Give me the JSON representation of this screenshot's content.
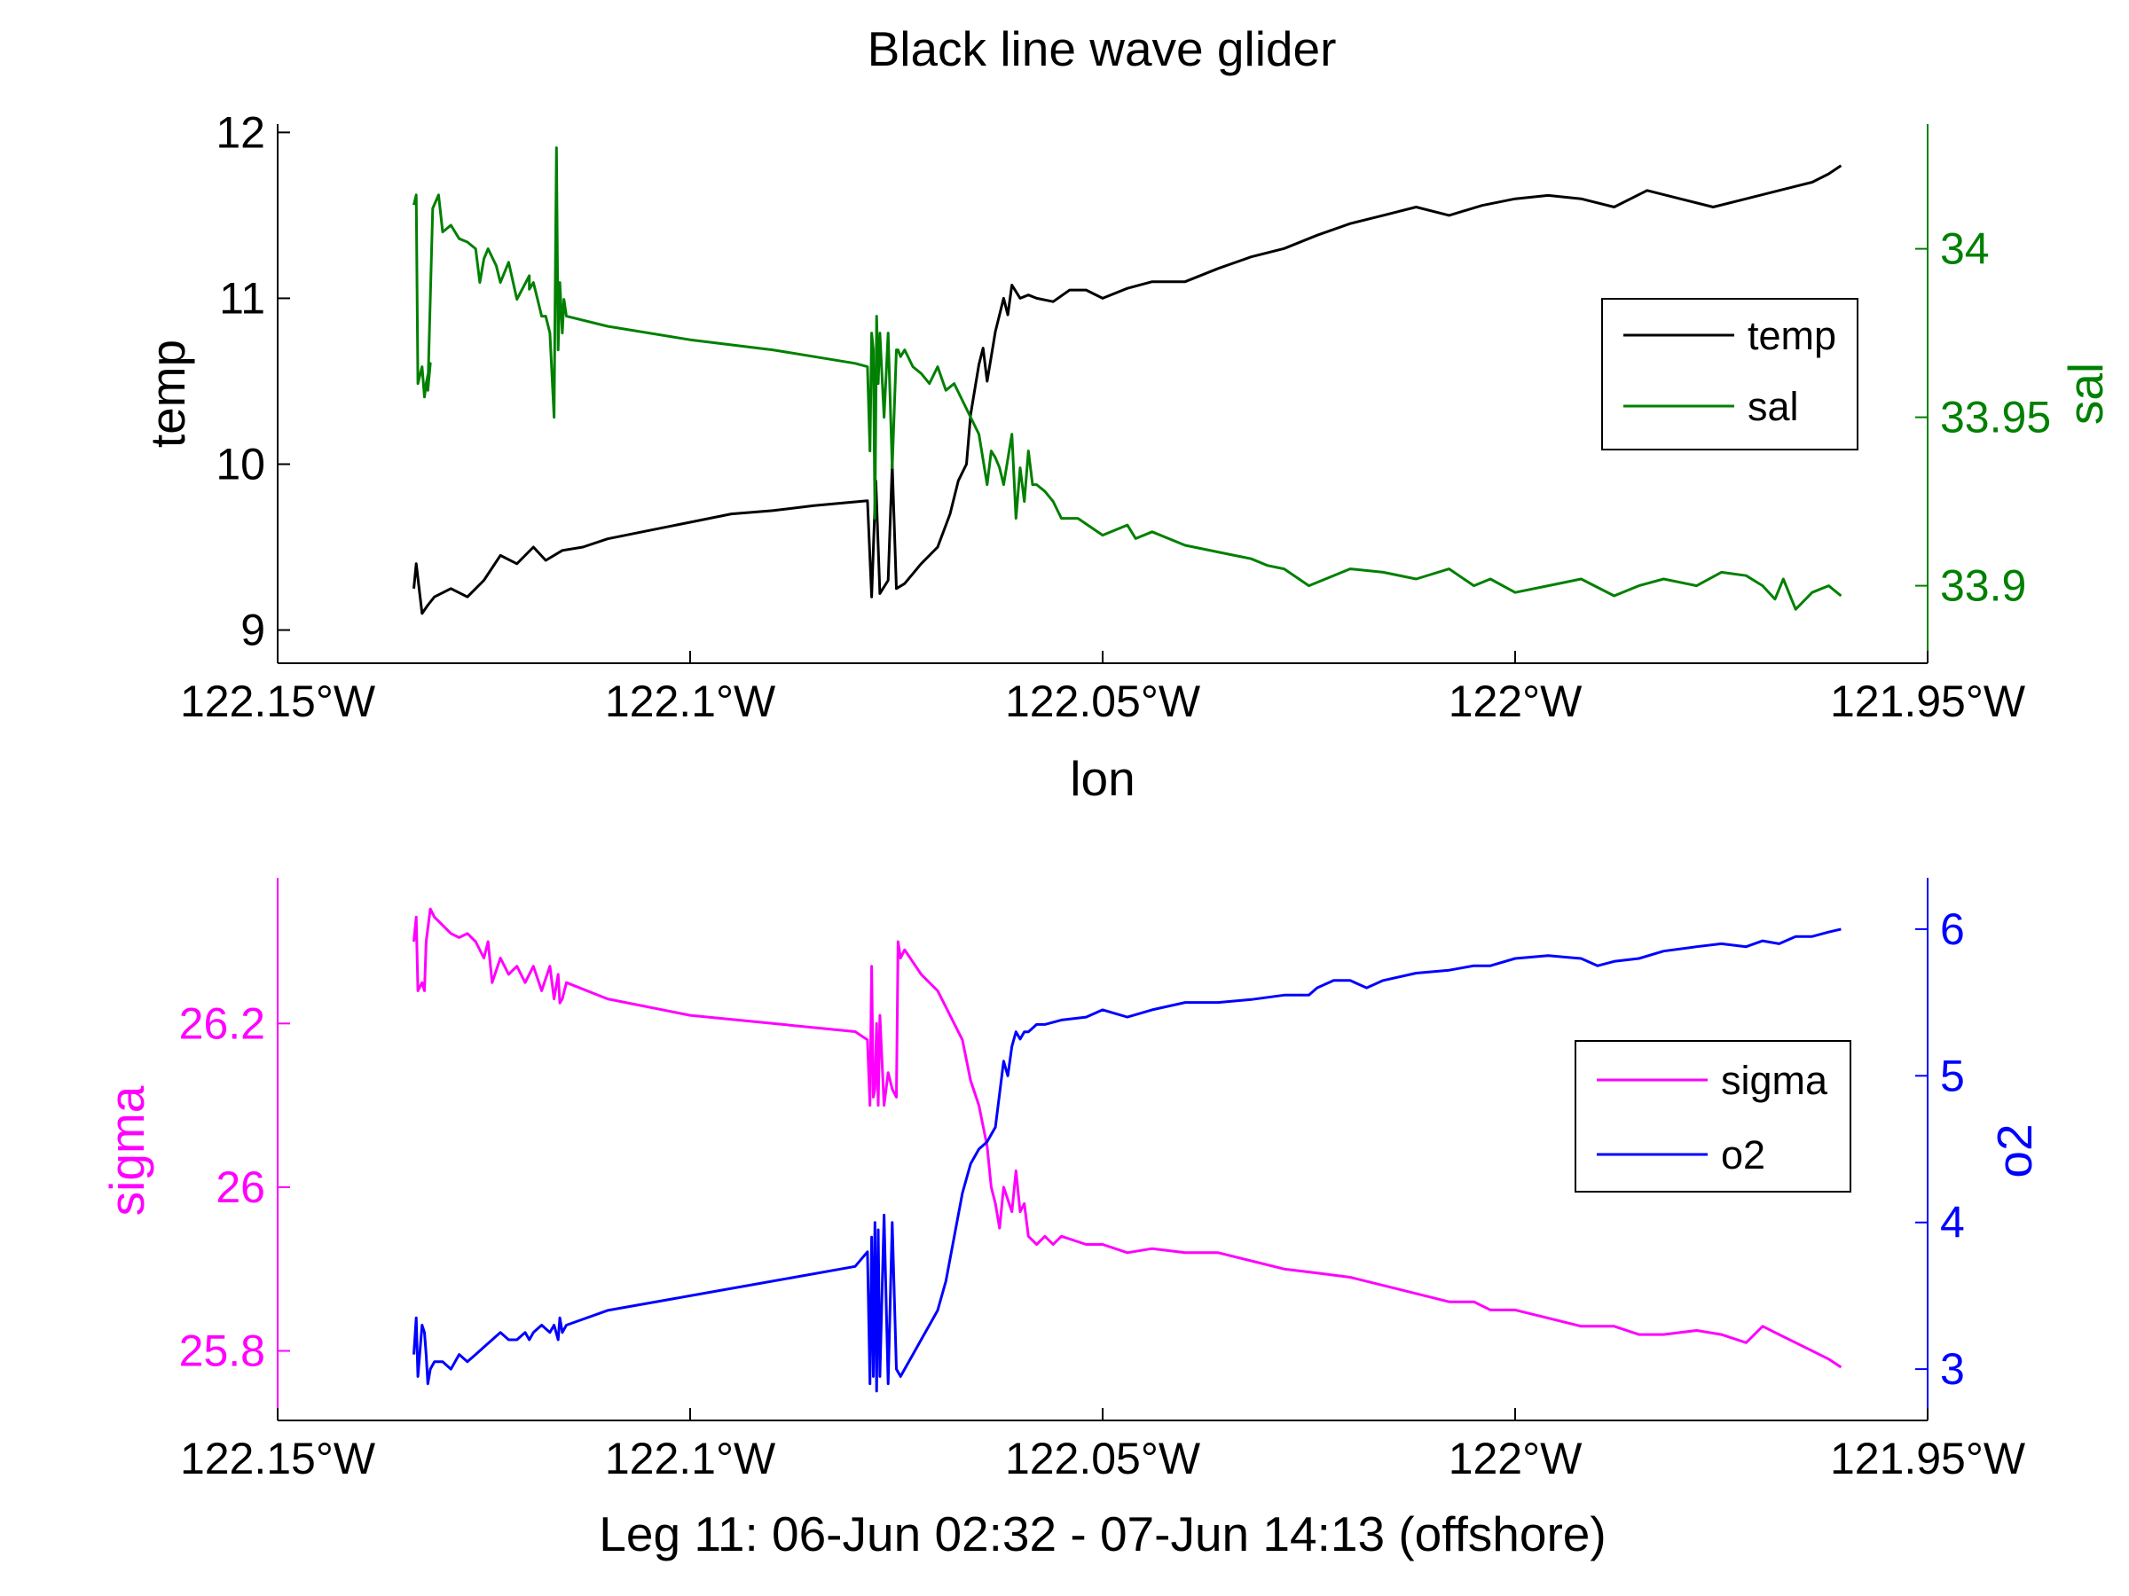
{
  "figure": {
    "title": "Black line wave glider",
    "subtitle": "Leg 11: 06-Jun 02:32 - 07-Jun 14:13 (offshore)"
  },
  "chart_data": [
    {
      "type": "line",
      "title": "Black line wave glider",
      "xlabel": "lon",
      "ylabel": "temp",
      "y2label": "sal",
      "xlim": [
        -122.15,
        -121.95
      ],
      "ylim": [
        8.8,
        12.05
      ],
      "y2lim": [
        33.877,
        34.037
      ],
      "x_ticks": [
        -122.15,
        -122.1,
        -122.05,
        -122.0,
        -121.95
      ],
      "x_tick_labels": [
        "122.15°W",
        "122.1°W",
        "122.05°W",
        "122°W",
        "121.95°W"
      ],
      "y_ticks": [
        9,
        10,
        11,
        12
      ],
      "y_tick_labels": [
        "9",
        "10",
        "11",
        "12"
      ],
      "y2_ticks": [
        33.9,
        33.95,
        34.0
      ],
      "y2_tick_labels": [
        "33.9",
        "33.95",
        "34"
      ],
      "grid": false,
      "legend_position": "right",
      "series": [
        {
          "name": "temp",
          "axis": "left",
          "color": "#000000",
          "x": [
            -122.1335,
            -122.1332,
            -122.1325,
            -122.1318,
            -122.131,
            -122.129,
            -122.127,
            -122.125,
            -122.123,
            -122.121,
            -122.119,
            -122.1175,
            -122.1155,
            -122.113,
            -122.11,
            -122.105,
            -122.1,
            -122.095,
            -122.09,
            -122.085,
            -122.0785,
            -122.078,
            -122.0775,
            -122.077,
            -122.076,
            -122.0755,
            -122.075,
            -122.074,
            -122.072,
            -122.07,
            -122.0685,
            -122.0675,
            -122.0665,
            -122.066,
            -122.065,
            -122.0645,
            -122.064,
            -122.063,
            -122.062,
            -122.0615,
            -122.061,
            -122.06,
            -122.059,
            -122.058,
            -122.056,
            -122.054,
            -122.052,
            -122.05,
            -122.047,
            -122.044,
            -122.04,
            -122.036,
            -122.032,
            -122.028,
            -122.024,
            -122.02,
            -122.016,
            -122.012,
            -122.008,
            -122.004,
            -122.0,
            -121.996,
            -121.992,
            -121.988,
            -121.984,
            -121.98,
            -121.976,
            -121.972,
            -121.968,
            -121.964,
            -121.962,
            -121.9605
          ],
          "y": [
            9.25,
            9.4,
            9.1,
            9.15,
            9.2,
            9.25,
            9.2,
            9.3,
            9.45,
            9.4,
            9.5,
            9.42,
            9.48,
            9.5,
            9.55,
            9.6,
            9.65,
            9.7,
            9.72,
            9.75,
            9.78,
            9.2,
            9.9,
            9.22,
            9.3,
            10.0,
            9.25,
            9.28,
            9.4,
            9.5,
            9.7,
            9.9,
            10.0,
            10.3,
            10.6,
            10.7,
            10.5,
            10.8,
            11.0,
            10.9,
            11.08,
            11.0,
            11.02,
            11.0,
            10.98,
            11.05,
            11.05,
            11.0,
            11.06,
            11.1,
            11.1,
            11.18,
            11.25,
            11.3,
            11.38,
            11.45,
            11.5,
            11.55,
            11.5,
            11.56,
            11.6,
            11.62,
            11.6,
            11.55,
            11.65,
            11.6,
            11.55,
            11.6,
            11.65,
            11.7,
            11.75,
            11.8
          ]
        },
        {
          "name": "sal",
          "axis": "right",
          "color": "#008000",
          "x": [
            -122.1335,
            -122.1332,
            -122.133,
            -122.1325,
            -122.1322,
            -122.132,
            -122.1315,
            -122.1318,
            -122.1312,
            -122.1305,
            -122.13,
            -122.129,
            -122.128,
            -122.127,
            -122.126,
            -122.1255,
            -122.125,
            -122.1245,
            -122.1235,
            -122.123,
            -122.122,
            -122.121,
            -122.1195,
            -122.1195,
            -122.119,
            -122.1185,
            -122.118,
            -122.1175,
            -122.117,
            -122.1165,
            -122.1162,
            -122.116,
            -122.1158,
            -122.1155,
            -122.1153,
            -122.115,
            -122.11,
            -122.1,
            -122.09,
            -122.08,
            -122.0785,
            -122.0782,
            -122.078,
            -122.0778,
            -122.0776,
            -122.0774,
            -122.0772,
            -122.077,
            -122.0765,
            -122.076,
            -122.0755,
            -122.075,
            -122.0748,
            -122.0745,
            -122.074,
            -122.073,
            -122.072,
            -122.071,
            -122.07,
            -122.069,
            -122.068,
            -122.067,
            -122.066,
            -122.065,
            -122.064,
            -122.0635,
            -122.063,
            -122.0625,
            -122.062,
            -122.061,
            -122.0605,
            -122.06,
            -122.0595,
            -122.059,
            -122.0585,
            -122.058,
            -122.057,
            -122.056,
            -122.055,
            -122.053,
            -122.05,
            -122.047,
            -122.046,
            -122.044,
            -122.04,
            -122.036,
            -122.032,
            -122.03,
            -122.028,
            -122.025,
            -122.02,
            -122.016,
            -122.012,
            -122.008,
            -122.005,
            -122.003,
            -122.0,
            -121.996,
            -121.992,
            -121.988,
            -121.985,
            -121.982,
            -121.978,
            -121.975,
            -121.972,
            -121.97,
            -121.9685,
            -121.9675,
            -121.966,
            -121.964,
            -121.962,
            -121.9605
          ],
          "y": [
            34.013,
            34.016,
            33.96,
            33.965,
            33.956,
            33.96,
            33.966,
            33.958,
            34.012,
            34.016,
            34.005,
            34.007,
            34.003,
            34.002,
            34.0,
            33.99,
            33.997,
            34.0,
            33.995,
            33.99,
            33.996,
            33.985,
            33.992,
            33.988,
            33.99,
            33.985,
            33.98,
            33.98,
            33.975,
            33.95,
            34.03,
            33.97,
            33.99,
            33.975,
            33.985,
            33.98,
            33.977,
            33.973,
            33.97,
            33.966,
            33.965,
            33.94,
            33.975,
            33.97,
            33.92,
            33.98,
            33.96,
            33.975,
            33.95,
            33.975,
            33.935,
            33.97,
            33.97,
            33.968,
            33.97,
            33.965,
            33.963,
            33.96,
            33.965,
            33.958,
            33.96,
            33.955,
            33.95,
            33.945,
            33.93,
            33.94,
            33.938,
            33.935,
            33.93,
            33.945,
            33.92,
            33.935,
            33.925,
            33.94,
            33.93,
            33.93,
            33.928,
            33.925,
            33.92,
            33.92,
            33.915,
            33.918,
            33.914,
            33.916,
            33.912,
            33.91,
            33.908,
            33.906,
            33.905,
            33.9,
            33.905,
            33.904,
            33.902,
            33.905,
            33.9,
            33.902,
            33.898,
            33.9,
            33.902,
            33.897,
            33.9,
            33.902,
            33.9,
            33.904,
            33.903,
            33.9,
            33.896,
            33.902,
            33.893,
            33.898,
            33.9,
            33.897
          ]
        }
      ]
    },
    {
      "type": "line",
      "title": "",
      "xlabel": "Leg 11: 06-Jun 02:32 - 07-Jun 14:13 (offshore)",
      "ylabel": "sigma",
      "y2label": "o2",
      "xlim": [
        -122.15,
        -121.95
      ],
      "ylim": [
        25.715,
        26.378
      ],
      "y2lim": [
        2.65,
        6.35
      ],
      "x_ticks": [
        -122.15,
        -122.1,
        -122.05,
        -122.0,
        -121.95
      ],
      "x_tick_labels": [
        "122.15°W",
        "122.1°W",
        "122.05°W",
        "122°W",
        "121.95°W"
      ],
      "y_ticks": [
        25.8,
        26.0,
        26.2
      ],
      "y_tick_labels": [
        "25.8",
        "26",
        "26.2"
      ],
      "y2_ticks": [
        3,
        4,
        5,
        6
      ],
      "y2_tick_labels": [
        "3",
        "4",
        "5",
        "6"
      ],
      "grid": false,
      "legend_position": "right",
      "series": [
        {
          "name": "sigma",
          "axis": "left",
          "color": "#ff00ff",
          "x": [
            -122.1335,
            -122.1332,
            -122.133,
            -122.1325,
            -122.1322,
            -122.132,
            -122.1315,
            -122.131,
            -122.13,
            -122.129,
            -122.128,
            -122.127,
            -122.126,
            -122.125,
            -122.1245,
            -122.124,
            -122.123,
            -122.122,
            -122.121,
            -122.12,
            -122.119,
            -122.118,
            -122.117,
            -122.1165,
            -122.116,
            -122.1158,
            -122.1155,
            -122.115,
            -122.11,
            -122.1,
            -122.09,
            -122.08,
            -122.0785,
            -122.0782,
            -122.078,
            -122.0778,
            -122.0776,
            -122.0774,
            -122.0772,
            -122.077,
            -122.0765,
            -122.076,
            -122.0755,
            -122.075,
            -122.0748,
            -122.0745,
            -122.074,
            -122.073,
            -122.072,
            -122.071,
            -122.07,
            -122.069,
            -122.068,
            -122.067,
            -122.066,
            -122.065,
            -122.064,
            -122.0635,
            -122.063,
            -122.0625,
            -122.062,
            -122.061,
            -122.0605,
            -122.06,
            -122.0595,
            -122.059,
            -122.058,
            -122.057,
            -122.056,
            -122.055,
            -122.052,
            -122.05,
            -122.047,
            -122.044,
            -122.04,
            -122.036,
            -122.032,
            -122.028,
            -122.024,
            -122.02,
            -122.016,
            -122.012,
            -122.008,
            -122.005,
            -122.003,
            -122.0,
            -121.996,
            -121.992,
            -121.988,
            -121.985,
            -121.982,
            -121.978,
            -121.975,
            -121.972,
            -121.97,
            -121.968,
            -121.966,
            -121.964,
            -121.962,
            -121.9605
          ],
          "y": [
            26.3,
            26.33,
            26.24,
            26.25,
            26.24,
            26.3,
            26.34,
            26.33,
            26.32,
            26.31,
            26.305,
            26.31,
            26.3,
            26.28,
            26.3,
            26.25,
            26.28,
            26.26,
            26.27,
            26.25,
            26.27,
            26.24,
            26.27,
            26.23,
            26.26,
            26.225,
            26.23,
            26.25,
            26.23,
            26.21,
            26.2,
            26.19,
            26.18,
            26.1,
            26.27,
            26.11,
            26.12,
            26.2,
            26.1,
            26.21,
            26.1,
            26.14,
            26.12,
            26.11,
            26.3,
            26.28,
            26.29,
            26.275,
            26.26,
            26.25,
            26.24,
            26.22,
            26.2,
            26.18,
            26.13,
            26.1,
            26.05,
            26.0,
            25.98,
            25.95,
            26.0,
            25.97,
            26.02,
            25.97,
            25.98,
            25.94,
            25.93,
            25.94,
            25.93,
            25.94,
            25.93,
            25.93,
            25.92,
            25.925,
            25.92,
            25.92,
            25.91,
            25.9,
            25.895,
            25.89,
            25.88,
            25.87,
            25.86,
            25.86,
            25.85,
            25.85,
            25.84,
            25.83,
            25.83,
            25.82,
            25.82,
            25.825,
            25.82,
            25.81,
            25.83,
            25.82,
            25.81,
            25.8,
            25.79,
            25.78
          ]
        },
        {
          "name": "o2",
          "axis": "right",
          "color": "#0000ff",
          "x": [
            -122.1335,
            -122.1332,
            -122.133,
            -122.1325,
            -122.1322,
            -122.132,
            -122.1318,
            -122.1315,
            -122.131,
            -122.13,
            -122.129,
            -122.128,
            -122.127,
            -122.126,
            -122.125,
            -122.124,
            -122.123,
            -122.122,
            -122.121,
            -122.12,
            -122.1195,
            -122.119,
            -122.118,
            -122.117,
            -122.1165,
            -122.116,
            -122.1158,
            -122.1155,
            -122.115,
            -122.11,
            -122.1,
            -122.09,
            -122.08,
            -122.0785,
            -122.0782,
            -122.078,
            -122.0778,
            -122.0776,
            -122.0774,
            -122.0772,
            -122.077,
            -122.0765,
            -122.076,
            -122.0755,
            -122.075,
            -122.0745,
            -122.074,
            -122.073,
            -122.072,
            -122.071,
            -122.07,
            -122.069,
            -122.068,
            -122.067,
            -122.066,
            -122.065,
            -122.064,
            -122.0635,
            -122.063,
            -122.062,
            -122.0615,
            -122.061,
            -122.0605,
            -122.06,
            -122.0595,
            -122.059,
            -122.058,
            -122.057,
            -122.055,
            -122.052,
            -122.05,
            -122.047,
            -122.044,
            -122.04,
            -122.036,
            -122.032,
            -122.028,
            -122.025,
            -122.024,
            -122.022,
            -122.02,
            -122.018,
            -122.016,
            -122.012,
            -122.008,
            -122.005,
            -122.003,
            -122.0,
            -121.996,
            -121.992,
            -121.99,
            -121.988,
            -121.985,
            -121.982,
            -121.978,
            -121.975,
            -121.972,
            -121.97,
            -121.968,
            -121.966,
            -121.964,
            -121.962,
            -121.9605
          ],
          "y": [
            3.1,
            3.35,
            2.95,
            3.3,
            3.25,
            3.1,
            2.9,
            3.0,
            3.05,
            3.05,
            3.0,
            3.1,
            3.05,
            3.1,
            3.15,
            3.2,
            3.25,
            3.2,
            3.2,
            3.25,
            3.2,
            3.25,
            3.3,
            3.25,
            3.3,
            3.2,
            3.35,
            3.25,
            3.3,
            3.4,
            3.5,
            3.6,
            3.7,
            3.8,
            2.9,
            3.9,
            2.95,
            4.0,
            2.85,
            3.95,
            2.95,
            4.05,
            2.9,
            4.0,
            3.0,
            2.95,
            3.0,
            3.1,
            3.2,
            3.3,
            3.4,
            3.6,
            3.9,
            4.2,
            4.4,
            4.5,
            4.55,
            4.6,
            4.65,
            5.1,
            5.0,
            5.2,
            5.3,
            5.25,
            5.3,
            5.3,
            5.35,
            5.35,
            5.38,
            5.4,
            5.45,
            5.4,
            5.45,
            5.5,
            5.5,
            5.52,
            5.55,
            5.55,
            5.6,
            5.65,
            5.65,
            5.6,
            5.65,
            5.7,
            5.72,
            5.75,
            5.75,
            5.8,
            5.82,
            5.8,
            5.75,
            5.78,
            5.8,
            5.85,
            5.88,
            5.9,
            5.88,
            5.92,
            5.9,
            5.95,
            5.95,
            5.98,
            6.0
          ]
        }
      ]
    }
  ]
}
